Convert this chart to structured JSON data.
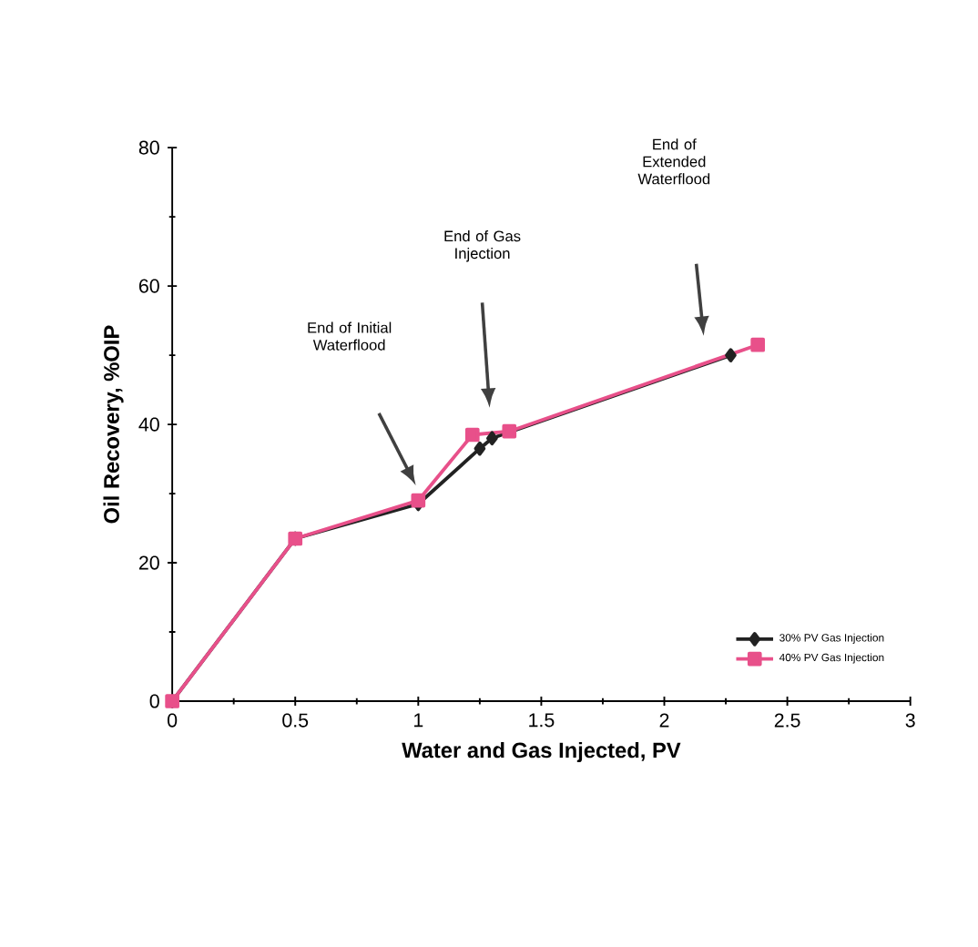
{
  "chart_data": {
    "type": "line",
    "xlabel": "Water and Gas Injected, PV",
    "ylabel": "Oil Recovery, %OIP",
    "xlim": [
      0,
      3
    ],
    "ylim": [
      0,
      80
    ],
    "xticks": [
      0,
      0.5,
      1,
      1.5,
      2,
      2.5,
      3
    ],
    "yticks": [
      0,
      20,
      40,
      60,
      80
    ],
    "grid": false,
    "legend": "bottom right",
    "series": [
      {
        "name": "30% PV Gas Injection",
        "color": "#222222",
        "marker": "diamond",
        "x": [
          0,
          0.5,
          1,
          1.25,
          1.3,
          2.27
        ],
        "values": [
          0,
          23.5,
          28.5,
          36.5,
          38,
          50
        ]
      },
      {
        "name": "40% PV Gas Injection",
        "color": "#e8508a",
        "marker": "square",
        "x": [
          0,
          0.5,
          1,
          1.22,
          1.37,
          2.38
        ],
        "values": [
          0,
          23.5,
          29,
          38.5,
          39,
          51.5
        ]
      }
    ],
    "annotations": [
      "End of Initial Waterflood",
      "End of Gas Injection",
      "End of Extended Waterflood"
    ]
  }
}
